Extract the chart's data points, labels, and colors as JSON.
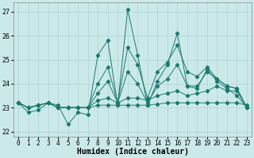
{
  "xlabel": "Humidex (Indice chaleur)",
  "bg_color": "#cce9ea",
  "grid_color": "#aad4d5",
  "line_color": "#1a7a6e",
  "xlim": [
    -0.5,
    23.5
  ],
  "ylim": [
    21.8,
    27.4
  ],
  "yticks": [
    22,
    23,
    24,
    25,
    26,
    27
  ],
  "xticks": [
    0,
    1,
    2,
    3,
    4,
    5,
    6,
    7,
    8,
    9,
    10,
    11,
    12,
    13,
    14,
    15,
    16,
    17,
    18,
    19,
    20,
    21,
    22,
    23
  ],
  "series": [
    [
      23.2,
      22.8,
      22.9,
      23.2,
      23.1,
      22.3,
      22.8,
      22.7,
      25.2,
      25.8,
      23.1,
      27.1,
      25.2,
      23.1,
      24.1,
      24.8,
      26.1,
      23.9,
      23.8,
      24.6,
      24.1,
      23.8,
      23.5,
      23.0
    ],
    [
      23.2,
      23.0,
      23.1,
      23.2,
      23.0,
      23.0,
      23.0,
      23.0,
      23.1,
      23.1,
      23.1,
      23.1,
      23.1,
      23.1,
      23.15,
      23.2,
      23.2,
      23.2,
      23.2,
      23.2,
      23.2,
      23.2,
      23.2,
      23.1
    ],
    [
      23.2,
      23.0,
      23.1,
      23.2,
      23.0,
      23.0,
      23.0,
      23.0,
      23.3,
      23.4,
      23.2,
      23.4,
      23.4,
      23.3,
      23.5,
      23.6,
      23.7,
      23.5,
      23.6,
      23.7,
      23.9,
      23.7,
      23.7,
      23.0
    ],
    [
      23.2,
      23.0,
      23.1,
      23.2,
      23.0,
      23.0,
      23.0,
      23.0,
      23.6,
      24.1,
      23.2,
      24.5,
      24.0,
      23.2,
      23.9,
      24.2,
      24.8,
      23.9,
      23.9,
      24.5,
      24.2,
      23.9,
      23.8,
      23.0
    ],
    [
      23.2,
      23.0,
      23.1,
      23.2,
      23.0,
      23.0,
      23.0,
      23.0,
      24.0,
      24.7,
      23.2,
      25.5,
      24.8,
      23.4,
      24.5,
      24.9,
      25.6,
      24.5,
      24.3,
      24.7,
      24.2,
      23.9,
      23.8,
      23.0
    ]
  ]
}
